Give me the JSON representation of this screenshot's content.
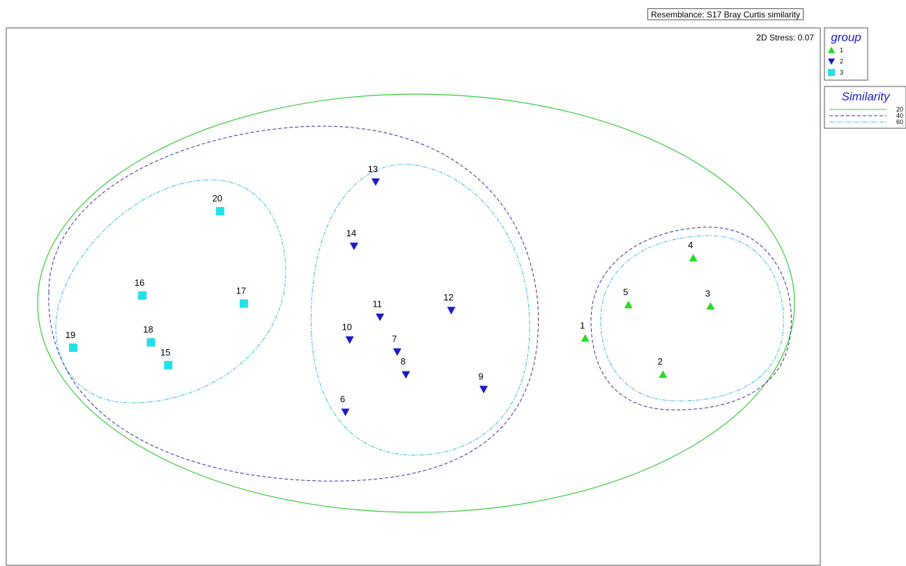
{
  "header": {
    "resemblance": "Resemblance: S17 Bray Curtis similarity"
  },
  "chart_data": {
    "type": "scatter",
    "title": "",
    "stress_label": "2D Stress: 0.07",
    "xlabel": "",
    "ylabel": "",
    "grid": false,
    "legend_position": "right",
    "group_legend": {
      "title": "group",
      "entries": [
        {
          "name": "1",
          "marker": "triangle-up",
          "color": "#22dd22"
        },
        {
          "name": "2",
          "marker": "triangle-down",
          "color": "#1a1acc"
        },
        {
          "name": "3",
          "marker": "square",
          "color": "#22e0e8"
        }
      ]
    },
    "similarity_legend": {
      "title": "Similarity",
      "entries": [
        {
          "name": "20",
          "style": "solid",
          "color": "#33cc33"
        },
        {
          "name": "40",
          "style": "dashed",
          "color": "#3a2a9a"
        },
        {
          "name": "60",
          "style": "dashdot",
          "color": "#33bbdd"
        }
      ]
    },
    "points": [
      {
        "label": "1",
        "group": "1",
        "x": 0.87,
        "y": 0.05
      },
      {
        "label": "2",
        "group": "1",
        "x": 1.23,
        "y": -0.22
      },
      {
        "label": "3",
        "group": "1",
        "x": 1.45,
        "y": 0.29
      },
      {
        "label": "4",
        "group": "1",
        "x": 1.37,
        "y": 0.65
      },
      {
        "label": "5",
        "group": "1",
        "x": 1.07,
        "y": 0.3
      },
      {
        "label": "6",
        "group": "2",
        "x": -0.24,
        "y": -0.5
      },
      {
        "label": "7",
        "group": "2",
        "x": 0.0,
        "y": -0.05
      },
      {
        "label": "8",
        "group": "2",
        "x": 0.04,
        "y": -0.22
      },
      {
        "label": "9",
        "group": "2",
        "x": 0.4,
        "y": -0.33
      },
      {
        "label": "10",
        "group": "2",
        "x": -0.22,
        "y": 0.04
      },
      {
        "label": "11",
        "group": "2",
        "x": -0.08,
        "y": 0.21
      },
      {
        "label": "12",
        "group": "2",
        "x": 0.25,
        "y": 0.26
      },
      {
        "label": "13",
        "group": "2",
        "x": -0.1,
        "y": 1.22
      },
      {
        "label": "14",
        "group": "2",
        "x": -0.2,
        "y": 0.74
      },
      {
        "label": "15",
        "group": "3",
        "x": -1.06,
        "y": -0.15
      },
      {
        "label": "16",
        "group": "3",
        "x": -1.18,
        "y": 0.37
      },
      {
        "label": "17",
        "group": "3",
        "x": -0.71,
        "y": 0.31
      },
      {
        "label": "18",
        "group": "3",
        "x": -1.14,
        "y": 0.02
      },
      {
        "label": "19",
        "group": "3",
        "x": -1.5,
        "y": -0.02
      },
      {
        "label": "20",
        "group": "3",
        "x": -0.82,
        "y": 1.0
      }
    ]
  }
}
